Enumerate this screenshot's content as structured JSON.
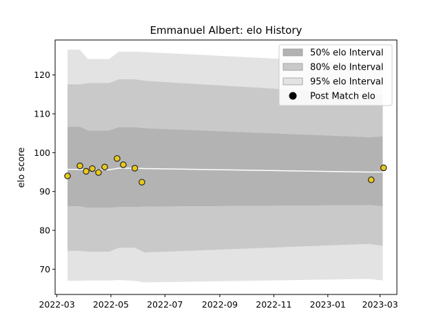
{
  "chart_data": {
    "type": "line",
    "title": "Emmanuel Albert: elo History",
    "xlabel": "",
    "ylabel": "elo score",
    "x_axis": "date",
    "xlim": [
      "2022-02-27",
      "2023-03-20"
    ],
    "ylim": [
      63.5,
      129
    ],
    "x_ticks": [
      "2022-03",
      "2022-05",
      "2022-07",
      "2022-09",
      "2022-11",
      "2023-01",
      "2023-03"
    ],
    "y_ticks": [
      70,
      80,
      90,
      100,
      110,
      120
    ],
    "grid": false,
    "legend_position": "top-right",
    "colors": {
      "band_50": "#b3b3b3",
      "band_80": "#c9c9c9",
      "band_95": "#e3e3e3",
      "mean_line": "#ffffff",
      "point_fill": "#e8c81e",
      "point_edge": "#1a1a1a"
    },
    "legend": [
      {
        "label": "50% elo Interval",
        "key": "band_50"
      },
      {
        "label": "80% elo Interval",
        "key": "band_80"
      },
      {
        "label": "95% elo Interval",
        "key": "band_95"
      },
      {
        "label": "Post Match elo",
        "key": "points"
      }
    ],
    "bands": {
      "x": [
        "2022-03-13",
        "2022-03-27",
        "2022-04-05",
        "2022-04-29",
        "2022-05-10",
        "2022-05-28",
        "2022-06-08",
        "2023-02-17",
        "2023-03-04"
      ],
      "band_95_upper": [
        126.5,
        126.5,
        124.1,
        124.1,
        126.0,
        126.0,
        125.9,
        123.0,
        123.0
      ],
      "band_95_lower": [
        67.0,
        67.0,
        67.1,
        67.1,
        67.2,
        67.0,
        66.6,
        67.5,
        67.1
      ],
      "band_80_upper": [
        117.6,
        117.6,
        117.9,
        117.9,
        118.9,
        118.9,
        118.5,
        115.0,
        115.0
      ],
      "band_80_lower": [
        74.7,
        74.7,
        74.5,
        74.5,
        75.5,
        75.5,
        74.3,
        76.5,
        76.0
      ],
      "band_50_upper": [
        106.7,
        106.7,
        105.7,
        105.7,
        106.6,
        106.6,
        106.3,
        104.0,
        104.2
      ],
      "band_50_lower": [
        86.2,
        86.2,
        85.8,
        85.8,
        86.0,
        86.0,
        86.1,
        86.5,
        86.2
      ]
    },
    "mean_line": {
      "x": [
        "2022-03-13",
        "2022-03-27",
        "2022-04-05",
        "2022-04-29",
        "2022-05-10",
        "2022-05-28",
        "2022-06-08",
        "2023-02-17",
        "2023-03-04"
      ],
      "y": [
        95.7,
        95.7,
        95.6,
        95.6,
        96.0,
        96.0,
        95.9,
        95.0,
        95.0
      ]
    },
    "points": {
      "name": "Post Match elo",
      "x": [
        "2022-03-13",
        "2022-03-27",
        "2022-04-03",
        "2022-04-10",
        "2022-04-17",
        "2022-04-24",
        "2022-05-08",
        "2022-05-15",
        "2022-05-28",
        "2022-06-05",
        "2023-02-19",
        "2023-03-05"
      ],
      "y": [
        94.0,
        96.6,
        95.2,
        95.9,
        94.9,
        96.3,
        98.5,
        96.9,
        96.0,
        92.4,
        93.0,
        96.1
      ]
    }
  }
}
